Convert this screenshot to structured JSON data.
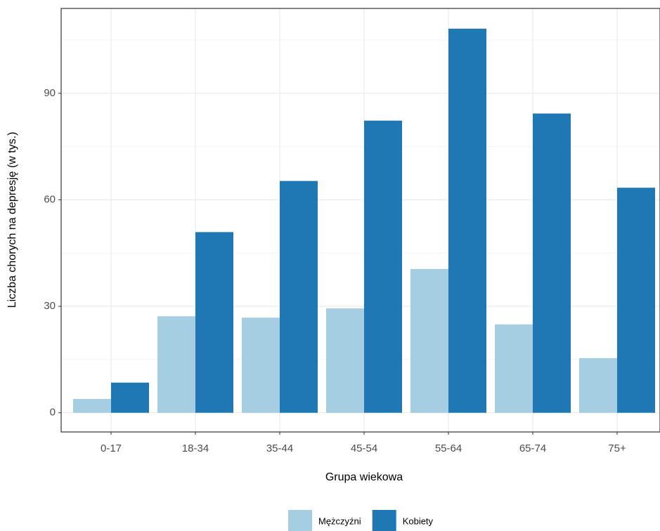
{
  "chart_data": {
    "type": "bar",
    "x_label": "Grupa wiekowa",
    "y_label": "Liczba chorych na depresję (w tys.)",
    "categories": [
      "0-17",
      "18-34",
      "35-44",
      "45-54",
      "55-64",
      "65-74",
      "75+"
    ],
    "series": [
      {
        "name": "Mężczyźni",
        "color": "#a6cee3",
        "values": [
          3.9,
          27.2,
          26.8,
          29.4,
          40.5,
          24.9,
          15.4
        ]
      },
      {
        "name": "Kobiety",
        "color": "#1f78b4",
        "values": [
          8.5,
          50.9,
          65.3,
          82.3,
          108.2,
          84.3,
          63.4
        ]
      }
    ],
    "ylim": [
      -5.4,
      113.9
    ],
    "yticks": [
      0,
      30,
      60,
      90
    ],
    "grid": true,
    "legend_position": "bottom"
  }
}
